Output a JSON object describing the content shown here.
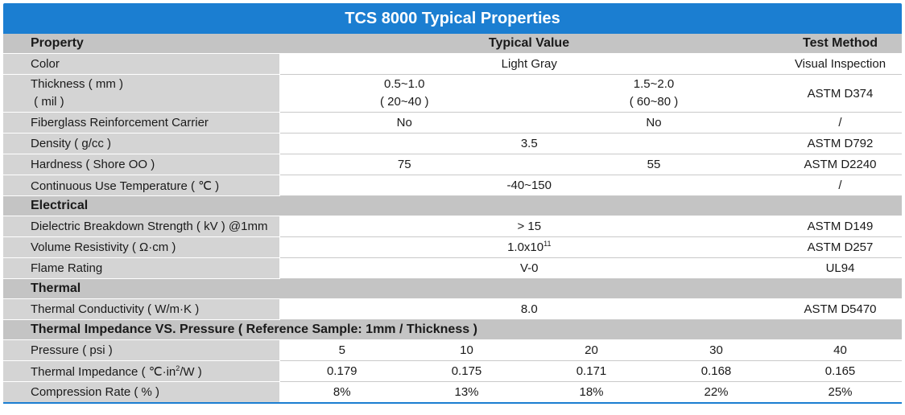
{
  "title": "TCS 8000 Typical Properties",
  "header": {
    "property": "Property",
    "typical_value": "Typical Value",
    "test_method": "Test Method"
  },
  "rows": {
    "color": {
      "label": "Color",
      "value": "Light Gray",
      "method": "Visual Inspection"
    },
    "thickness": {
      "label1": "Thickness ( mm )",
      "label2": " ( mil )",
      "v1a": "0.5~1.0",
      "v1b": "( 20~40 )",
      "v2a": "1.5~2.0",
      "v2b": "( 60~80 )",
      "method": "ASTM D374"
    },
    "fiberglass": {
      "label": "Fiberglass Reinforcement Carrier",
      "v1": "No",
      "v2": "No",
      "method": "/"
    },
    "density": {
      "label": "Density ( g/cc )",
      "value": "3.5",
      "method": "ASTM D792"
    },
    "hardness": {
      "label": "Hardness ( Shore OO )",
      "v1": "75",
      "v2": "55",
      "method": "ASTM D2240"
    },
    "temperature": {
      "label": "Continuous Use Temperature ( ℃ )",
      "value": "-40~150",
      "method": "/"
    }
  },
  "electrical": {
    "section": "Electrical",
    "dielectric": {
      "label": "Dielectric Breakdown Strength ( kV ) @1mm",
      "value": "> 15",
      "method": "ASTM D149"
    },
    "resistivity": {
      "label": "Volume Resistivity ( Ω·cm )",
      "value_base": "1.0x10",
      "value_exp": "11",
      "method": "ASTM D257"
    },
    "flame": {
      "label": "Flame Rating",
      "value": "V-0",
      "method": "UL94"
    }
  },
  "thermal": {
    "section": "Thermal",
    "conductivity": {
      "label": "Thermal Conductivity ( W/m·K )",
      "value": "8.0",
      "method": "ASTM D5470"
    }
  },
  "impedance": {
    "section": "Thermal Impedance VS. Pressure ( Reference Sample: 1mm / Thickness )",
    "pressure_label": "Pressure ( psi )",
    "pressure": [
      "5",
      "10",
      "20",
      "30",
      "40"
    ],
    "impedance_label_pre": "Thermal Impedance ( ℃·in",
    "impedance_label_exp": "2",
    "impedance_label_post": "/W )",
    "impedance": [
      "0.179",
      "0.175",
      "0.171",
      "0.168",
      "0.165"
    ],
    "compression_label": "Compression Rate ( % )",
    "compression": [
      "8%",
      "13%",
      "18%",
      "22%",
      "25%"
    ]
  },
  "colors": {
    "title_bg": "#1b7ed1",
    "label_bg": "#d4d4d4",
    "section_bg": "#c4c4c4"
  }
}
